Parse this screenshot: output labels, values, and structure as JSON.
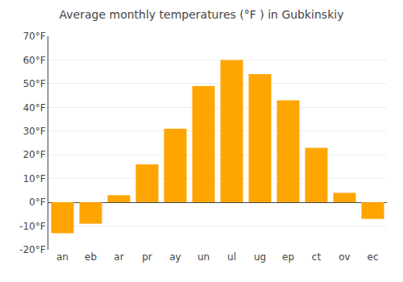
{
  "chart_data": {
    "type": "bar",
    "title": "Average monthly temperatures (°F ) in Gubkinskiy",
    "categories": [
      "an",
      "eb",
      "ar",
      "pr",
      "ay",
      "un",
      "ul",
      "ug",
      "ep",
      "ct",
      "ov",
      "ec"
    ],
    "values": [
      -13,
      -9,
      3,
      16,
      31,
      49,
      60,
      54,
      43,
      23,
      4,
      -7
    ],
    "color": "#FFA500",
    "ylim": [
      -20,
      70
    ],
    "yticks": [
      {
        "value": -20,
        "label": "-20°F"
      },
      {
        "value": -10,
        "label": "-10°F"
      },
      {
        "value": 0,
        "label": "0°F"
      },
      {
        "value": 10,
        "label": "10°F"
      },
      {
        "value": 20,
        "label": "20°F"
      },
      {
        "value": 30,
        "label": "30°F"
      },
      {
        "value": 40,
        "label": "40°F"
      },
      {
        "value": 50,
        "label": "50°F"
      },
      {
        "value": 60,
        "label": "60°F"
      },
      {
        "value": 70,
        "label": "70°F"
      }
    ],
    "grid": true
  }
}
